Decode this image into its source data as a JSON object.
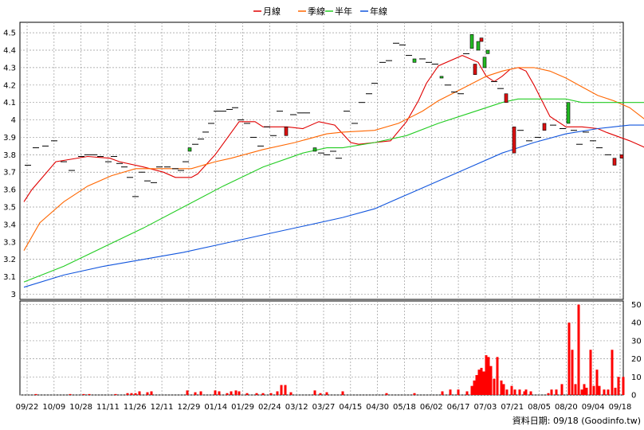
{
  "credit": "資料日期: 09/18 (Goodinfo.tw)",
  "colors": {
    "ma_month": "#e00000",
    "ma_quarter": "#ff6600",
    "ma_half": "#22cc22",
    "ma_year": "#1155dd",
    "k_up": "#dd1111",
    "k_down": "#22bb22",
    "volume": "#ff0000",
    "grid": "#999999"
  },
  "chart_data": [
    {
      "type": "line",
      "title": "",
      "legend_position": "top-center",
      "grid": true,
      "x_labels": [
        "09/22",
        "10/09",
        "10/28",
        "11/11",
        "11/26",
        "12/11",
        "12/29",
        "01/14",
        "01/29",
        "02/24",
        "03/12",
        "03/27",
        "04/15",
        "04/30",
        "05/18",
        "06/02",
        "06/17",
        "07/03",
        "07/21",
        "08/05",
        "08/20",
        "09/04",
        "09/18"
      ],
      "y_ticks": [
        3,
        3.1,
        3.2,
        3.3,
        3.4,
        3.5,
        3.6,
        3.7,
        3.8,
        3.9,
        4,
        4.1,
        4.2,
        4.3,
        4.4,
        4.5
      ],
      "ylim": [
        2.97,
        4.56
      ],
      "series": [
        {
          "name": "月線",
          "color_key": "ma_month",
          "x": [
            0,
            10,
            40,
            80,
            108,
            120,
            150,
            175,
            190,
            210,
            218,
            240,
            270,
            290,
            300,
            330,
            350,
            370,
            390,
            410,
            420,
            440,
            460,
            480,
            495,
            505,
            520,
            550,
            570,
            580,
            590,
            600,
            610,
            620,
            630,
            640,
            660,
            680,
            700,
            720,
            730,
            760,
            775,
            780
          ],
          "y": [
            3.53,
            3.6,
            3.76,
            3.79,
            3.78,
            3.76,
            3.73,
            3.7,
            3.67,
            3.67,
            3.69,
            3.8,
            3.99,
            3.99,
            3.96,
            3.96,
            3.95,
            3.99,
            3.97,
            3.87,
            3.86,
            3.87,
            3.88,
            3.99,
            4.11,
            4.21,
            4.31,
            4.37,
            4.33,
            4.25,
            4.22,
            4.25,
            4.29,
            4.3,
            4.28,
            4.2,
            4.02,
            3.96,
            3.96,
            3.95,
            3.93,
            3.88,
            3.85,
            3.84
          ]
        },
        {
          "name": "季線",
          "color_key": "ma_quarter",
          "x": [
            0,
            20,
            50,
            80,
            110,
            140,
            180,
            210,
            240,
            260,
            300,
            340,
            380,
            400,
            440,
            470,
            500,
            520,
            550,
            580,
            600,
            620,
            640,
            660,
            680,
            700,
            720,
            740,
            760,
            780
          ],
          "y": [
            3.25,
            3.41,
            3.53,
            3.62,
            3.68,
            3.72,
            3.72,
            3.72,
            3.76,
            3.78,
            3.83,
            3.87,
            3.92,
            3.93,
            3.94,
            3.98,
            4.05,
            4.11,
            4.18,
            4.25,
            4.28,
            4.3,
            4.3,
            4.28,
            4.24,
            4.19,
            4.14,
            4.11,
            4.07,
            4
          ]
        },
        {
          "name": "半年",
          "color_key": "ma_half",
          "x": [
            0,
            50,
            100,
            150,
            200,
            250,
            300,
            350,
            380,
            400,
            440,
            480,
            520,
            560,
            600,
            620,
            640,
            660,
            680,
            700,
            720,
            740,
            760,
            780
          ],
          "y": [
            3.07,
            3.16,
            3.27,
            3.38,
            3.5,
            3.62,
            3.73,
            3.81,
            3.84,
            3.84,
            3.87,
            3.91,
            3.98,
            4.04,
            4.1,
            4.12,
            4.12,
            4.12,
            4.12,
            4.1,
            4.1,
            4.1,
            4.1,
            4.1
          ]
        },
        {
          "name": "年線",
          "color_key": "ma_year",
          "x": [
            0,
            50,
            100,
            150,
            200,
            250,
            300,
            350,
            400,
            440,
            480,
            520,
            560,
            600,
            640,
            680,
            720,
            760,
            780
          ],
          "y": [
            3.04,
            3.11,
            3.16,
            3.2,
            3.24,
            3.29,
            3.34,
            3.39,
            3.44,
            3.49,
            3.57,
            3.65,
            3.73,
            3.81,
            3.87,
            3.92,
            3.95,
            3.97,
            3.97
          ]
        }
      ],
      "candles": [
        {
          "x": 5,
          "o": 3.74,
          "c": 3.74
        },
        {
          "x": 15,
          "o": 3.84,
          "c": 3.84
        },
        {
          "x": 27,
          "o": 3.85,
          "c": 3.85
        },
        {
          "x": 38,
          "o": 3.88,
          "c": 3.88
        },
        {
          "x": 50,
          "o": 3.76,
          "c": 3.76
        },
        {
          "x": 60,
          "o": 3.71,
          "c": 3.71
        },
        {
          "x": 72,
          "o": 3.79,
          "c": 3.79
        },
        {
          "x": 80,
          "o": 3.8,
          "c": 3.8
        },
        {
          "x": 88,
          "o": 3.8,
          "c": 3.8
        },
        {
          "x": 96,
          "o": 3.79,
          "c": 3.79
        },
        {
          "x": 106,
          "o": 3.76,
          "c": 3.76
        },
        {
          "x": 113,
          "o": 3.79,
          "c": 3.79
        },
        {
          "x": 120,
          "o": 3.75,
          "c": 3.75
        },
        {
          "x": 126,
          "o": 3.73,
          "c": 3.73
        },
        {
          "x": 133,
          "o": 3.67,
          "c": 3.67
        },
        {
          "x": 140,
          "o": 3.56,
          "c": 3.56
        },
        {
          "x": 148,
          "o": 3.7,
          "c": 3.7
        },
        {
          "x": 155,
          "o": 3.65,
          "c": 3.65
        },
        {
          "x": 163,
          "o": 3.64,
          "c": 3.64
        },
        {
          "x": 170,
          "o": 3.73,
          "c": 3.73
        },
        {
          "x": 180,
          "o": 3.73,
          "c": 3.73
        },
        {
          "x": 190,
          "o": 3.72,
          "c": 3.72
        },
        {
          "x": 197,
          "o": 3.71,
          "c": 3.71
        },
        {
          "x": 203,
          "o": 3.76,
          "c": 3.76
        },
        {
          "x": 208,
          "o": 3.82,
          "c": 3.84
        },
        {
          "x": 215,
          "o": 3.86,
          "c": 3.86
        },
        {
          "x": 222,
          "o": 3.89,
          "c": 3.89
        },
        {
          "x": 228,
          "o": 3.93,
          "c": 3.93
        },
        {
          "x": 235,
          "o": 3.98,
          "c": 3.98
        },
        {
          "x": 242,
          "o": 4.05,
          "c": 4.05
        },
        {
          "x": 250,
          "o": 4.05,
          "c": 4.05
        },
        {
          "x": 258,
          "o": 4.06,
          "c": 4.06
        },
        {
          "x": 265,
          "o": 4.07,
          "c": 4.07
        },
        {
          "x": 272,
          "o": 4,
          "c": 4
        },
        {
          "x": 280,
          "o": 3.98,
          "c": 3.98
        },
        {
          "x": 288,
          "o": 3.9,
          "c": 3.9
        },
        {
          "x": 297,
          "o": 3.85,
          "c": 3.85
        },
        {
          "x": 305,
          "o": 3.96,
          "c": 3.96
        },
        {
          "x": 313,
          "o": 3.91,
          "c": 3.91
        },
        {
          "x": 321,
          "o": 4.05,
          "c": 4.05
        },
        {
          "x": 329,
          "o": 3.96,
          "c": 3.91
        },
        {
          "x": 338,
          "o": 4.03,
          "c": 4.03
        },
        {
          "x": 347,
          "o": 4.04,
          "c": 4.04
        },
        {
          "x": 355,
          "o": 4.04,
          "c": 4.04
        },
        {
          "x": 365,
          "o": 3.82,
          "c": 3.84
        },
        {
          "x": 373,
          "o": 3.81,
          "c": 3.81
        },
        {
          "x": 380,
          "o": 3.8,
          "c": 3.8
        },
        {
          "x": 388,
          "o": 3.82,
          "c": 3.82
        },
        {
          "x": 395,
          "o": 3.78,
          "c": 3.78
        },
        {
          "x": 405,
          "o": 4.05,
          "c": 4.05
        },
        {
          "x": 415,
          "o": 3.98,
          "c": 3.98
        },
        {
          "x": 424,
          "o": 4.1,
          "c": 4.1
        },
        {
          "x": 433,
          "o": 4.15,
          "c": 4.15
        },
        {
          "x": 440,
          "o": 4.21,
          "c": 4.21
        },
        {
          "x": 450,
          "o": 4.33,
          "c": 4.33
        },
        {
          "x": 458,
          "o": 4.34,
          "c": 4.34
        },
        {
          "x": 467,
          "o": 4.44,
          "c": 4.44
        },
        {
          "x": 475,
          "o": 4.43,
          "c": 4.43
        },
        {
          "x": 483,
          "o": 4.37,
          "c": 4.37
        },
        {
          "x": 490,
          "o": 4.33,
          "c": 4.35
        },
        {
          "x": 500,
          "o": 4.35,
          "c": 4.35
        },
        {
          "x": 508,
          "o": 4.33,
          "c": 4.33
        },
        {
          "x": 516,
          "o": 4.32,
          "c": 4.32
        },
        {
          "x": 524,
          "o": 4.24,
          "c": 4.25
        },
        {
          "x": 532,
          "o": 4.2,
          "c": 4.2
        },
        {
          "x": 540,
          "o": 4.16,
          "c": 4.16
        },
        {
          "x": 548,
          "o": 4.15,
          "c": 4.15
        },
        {
          "x": 555,
          "o": 4.38,
          "c": 4.38
        },
        {
          "x": 562,
          "o": 4.41,
          "c": 4.49
        },
        {
          "x": 566,
          "o": 4.32,
          "c": 4.26
        },
        {
          "x": 570,
          "o": 4.4,
          "c": 4.45
        },
        {
          "x": 574,
          "o": 4.47,
          "c": 4.45
        },
        {
          "x": 578,
          "o": 4.3,
          "c": 4.36
        },
        {
          "x": 582,
          "o": 4.38,
          "c": 4.4
        },
        {
          "x": 590,
          "o": 4.22,
          "c": 4.22
        },
        {
          "x": 598,
          "o": 4.18,
          "c": 4.18
        },
        {
          "x": 605,
          "o": 4.15,
          "c": 4.1
        },
        {
          "x": 615,
          "o": 3.96,
          "c": 3.81
        },
        {
          "x": 623,
          "o": 3.94,
          "c": 3.94
        },
        {
          "x": 634,
          "o": 3.88,
          "c": 3.88
        },
        {
          "x": 645,
          "o": 3.9,
          "c": 3.9
        },
        {
          "x": 653,
          "o": 3.98,
          "c": 3.94
        },
        {
          "x": 664,
          "o": 3.97,
          "c": 3.97
        },
        {
          "x": 676,
          "o": 3.95,
          "c": 3.95
        },
        {
          "x": 683,
          "o": 3.98,
          "c": 4.1
        },
        {
          "x": 690,
          "o": 3.94,
          "c": 3.94
        },
        {
          "x": 697,
          "o": 3.86,
          "c": 3.86
        },
        {
          "x": 705,
          "o": 3.93,
          "c": 3.93
        },
        {
          "x": 714,
          "o": 3.88,
          "c": 3.88
        },
        {
          "x": 722,
          "o": 3.84,
          "c": 3.84
        },
        {
          "x": 733,
          "o": 3.8,
          "c": 3.8
        },
        {
          "x": 741,
          "o": 3.78,
          "c": 3.74
        },
        {
          "x": 750,
          "o": 3.8,
          "c": 3.78
        }
      ]
    },
    {
      "type": "bar",
      "title": "",
      "y_ticks": [
        0,
        10,
        20,
        30,
        40,
        50
      ],
      "ylim": [
        0,
        52
      ],
      "values": [
        {
          "x": 2,
          "v": 0
        },
        {
          "x": 15,
          "v": 0.5
        },
        {
          "x": 58,
          "v": 0.5
        },
        {
          "x": 75,
          "v": 0.5
        },
        {
          "x": 82,
          "v": 0.5
        },
        {
          "x": 115,
          "v": 0.5
        },
        {
          "x": 130,
          "v": 1
        },
        {
          "x": 135,
          "v": 1
        },
        {
          "x": 140,
          "v": 1
        },
        {
          "x": 145,
          "v": 2
        },
        {
          "x": 155,
          "v": 1.5
        },
        {
          "x": 160,
          "v": 2
        },
        {
          "x": 205,
          "v": 2.5
        },
        {
          "x": 215,
          "v": 1.5
        },
        {
          "x": 222,
          "v": 2
        },
        {
          "x": 240,
          "v": 2.5
        },
        {
          "x": 245,
          "v": 2
        },
        {
          "x": 255,
          "v": 1
        },
        {
          "x": 260,
          "v": 2
        },
        {
          "x": 266,
          "v": 2.5
        },
        {
          "x": 270,
          "v": 2
        },
        {
          "x": 280,
          "v": 1
        },
        {
          "x": 292,
          "v": 1
        },
        {
          "x": 300,
          "v": 1
        },
        {
          "x": 310,
          "v": 1
        },
        {
          "x": 318,
          "v": 2
        },
        {
          "x": 323,
          "v": 5.5
        },
        {
          "x": 328,
          "v": 5.5
        },
        {
          "x": 335,
          "v": 1.5
        },
        {
          "x": 365,
          "v": 2.5
        },
        {
          "x": 372,
          "v": 1
        },
        {
          "x": 380,
          "v": 1.5
        },
        {
          "x": 400,
          "v": 2
        },
        {
          "x": 455,
          "v": 1
        },
        {
          "x": 490,
          "v": 1
        },
        {
          "x": 525,
          "v": 2
        },
        {
          "x": 535,
          "v": 3
        },
        {
          "x": 545,
          "v": 3
        },
        {
          "x": 556,
          "v": 2
        },
        {
          "x": 562,
          "v": 5
        },
        {
          "x": 565,
          "v": 8
        },
        {
          "x": 568,
          "v": 11
        },
        {
          "x": 571,
          "v": 14
        },
        {
          "x": 574,
          "v": 15
        },
        {
          "x": 577,
          "v": 13
        },
        {
          "x": 580,
          "v": 22
        },
        {
          "x": 583,
          "v": 21
        },
        {
          "x": 586,
          "v": 16
        },
        {
          "x": 590,
          "v": 9
        },
        {
          "x": 594,
          "v": 21
        },
        {
          "x": 599,
          "v": 8
        },
        {
          "x": 602,
          "v": 6
        },
        {
          "x": 606,
          "v": 3
        },
        {
          "x": 612,
          "v": 5
        },
        {
          "x": 616,
          "v": 3
        },
        {
          "x": 622,
          "v": 3
        },
        {
          "x": 628,
          "v": 2
        },
        {
          "x": 630,
          "v": 3
        },
        {
          "x": 636,
          "v": 2
        },
        {
          "x": 658,
          "v": 1
        },
        {
          "x": 662,
          "v": 3
        },
        {
          "x": 668,
          "v": 3
        },
        {
          "x": 675,
          "v": 6
        },
        {
          "x": 684,
          "v": 40
        },
        {
          "x": 688,
          "v": 25
        },
        {
          "x": 692,
          "v": 6
        },
        {
          "x": 696,
          "v": 50
        },
        {
          "x": 700,
          "v": 3
        },
        {
          "x": 703,
          "v": 6
        },
        {
          "x": 706,
          "v": 4
        },
        {
          "x": 711,
          "v": 25
        },
        {
          "x": 715,
          "v": 5
        },
        {
          "x": 719,
          "v": 14
        },
        {
          "x": 722,
          "v": 5
        },
        {
          "x": 728,
          "v": 3
        },
        {
          "x": 733,
          "v": 3
        },
        {
          "x": 738,
          "v": 25
        },
        {
          "x": 742,
          "v": 4
        },
        {
          "x": 746,
          "v": 10
        },
        {
          "x": 752,
          "v": 10
        }
      ]
    }
  ]
}
